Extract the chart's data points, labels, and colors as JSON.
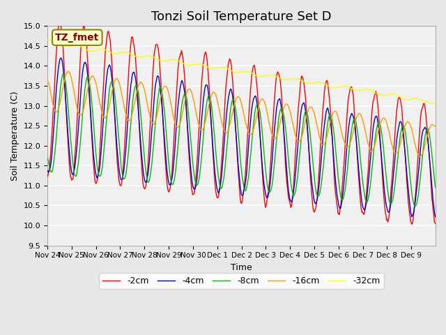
{
  "title": "Tonzi Soil Temperature Set D",
  "xlabel": "Time",
  "ylabel": "Soil Temperature (C)",
  "ylim": [
    9.5,
    15.0
  ],
  "legend_label": "TZ_fmet",
  "series_labels": [
    "-2cm",
    "-4cm",
    "-8cm",
    "-16cm",
    "-32cm"
  ],
  "series_colors": [
    "#ff0000",
    "#0000cc",
    "#00bb00",
    "#ff9900",
    "#ffff00"
  ],
  "xtick_labels": [
    "Nov 24",
    "Nov 25",
    "Nov 26",
    "Nov 27",
    "Nov 28",
    "Nov 29",
    "Nov 30",
    "Dec 1",
    "Dec 2",
    "Dec 3",
    "Dec 4",
    "Dec 5",
    "Dec 6",
    "Dec 7",
    "Dec 8",
    "Dec 9"
  ],
  "background_color": "#e8e8e8",
  "plot_bg_color": "#f0f0f0",
  "grid_color": "#ffffff",
  "title_fontsize": 13,
  "axis_fontsize": 9,
  "legend_box_color": "#ffffcc",
  "legend_text_color": "#880000"
}
